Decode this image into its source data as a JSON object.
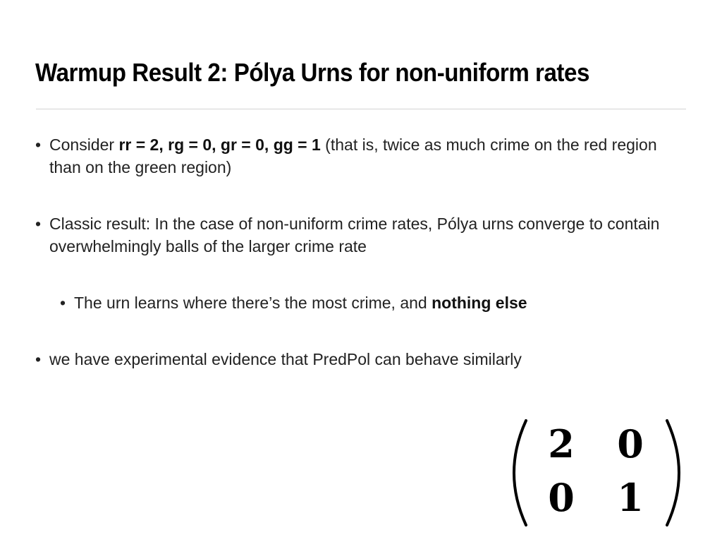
{
  "slide": {
    "title": "Warmup Result 2: Pólya Urns for non-uniform rates",
    "bullets": [
      {
        "prefix": "Consider ",
        "bold": "rr = 2, rg = 0, gr = 0, gg = 1",
        "suffix": " (that is, twice as much crime on the red region than on the green region)"
      },
      {
        "text": "Classic result: In the case of non-uniform crime rates, Pólya urns converge to contain overwhelmingly balls of the larger crime rate"
      },
      {
        "prefix": "The urn learns where there’s the most crime, and ",
        "bold": "nothing else",
        "suffix": ""
      },
      {
        "text": "we have experimental evidence that PredPol can behave similarly"
      }
    ],
    "bullet_glyph": "•",
    "matrix": {
      "row1": [
        "2",
        "0"
      ],
      "row2": [
        "0",
        "1"
      ]
    }
  }
}
